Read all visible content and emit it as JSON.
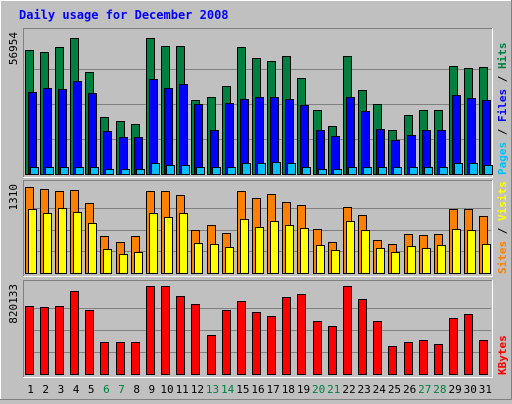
{
  "chart_data": {
    "type": "bar",
    "title": "Daily usage for December 2008",
    "categories": [
      "1",
      "2",
      "3",
      "4",
      "5",
      "6",
      "7",
      "8",
      "9",
      "10",
      "11",
      "12",
      "13",
      "14",
      "15",
      "16",
      "17",
      "18",
      "19",
      "20",
      "21",
      "22",
      "23",
      "24",
      "25",
      "26",
      "27",
      "28",
      "29",
      "30",
      "31"
    ],
    "weekend_days": [
      "6",
      "7",
      "13",
      "14",
      "20",
      "21",
      "27",
      "28"
    ],
    "colors": {
      "background": "#C0C0C0",
      "title": "#0000FF",
      "hits": "#008040",
      "files": "#0000FF",
      "pages": "#00C0FF",
      "visits": "#FFFF00",
      "sites": "#FF8000",
      "kbytes": "#FF0000",
      "weekday_label": "#000000",
      "weekend_label": "#008040",
      "gridline": "#808080"
    },
    "panels": [
      {
        "id": "hits",
        "y_label": "56954",
        "ymax": 56954,
        "legend": [
          {
            "text": "Pages",
            "color": "#00C0FF"
          },
          {
            "text": " / ",
            "color": "#000000"
          },
          {
            "text": "Files",
            "color": "#0000FF"
          },
          {
            "text": " / ",
            "color": "#000000"
          },
          {
            "text": "Hits",
            "color": "#008040"
          }
        ],
        "series": [
          {
            "name": "Hits",
            "color": "#008040",
            "values": [
              50500,
              49500,
              51500,
              55500,
              41500,
              23000,
              21500,
              20500,
              55500,
              52000,
              52000,
              30000,
              31500,
              36000,
              51500,
              47000,
              46000,
              48000,
              39000,
              26000,
              19500,
              48000,
              34000,
              28500,
              18000,
              24000,
              26000,
              26000,
              44000,
              43000,
              43500
            ]
          },
          {
            "name": "Files",
            "color": "#0000FF",
            "values": [
              33500,
              35000,
              34500,
              38000,
              33000,
              17500,
              15000,
              15000,
              38500,
              35000,
              36500,
              28500,
              18000,
              29000,
              30500,
              31500,
              31500,
              30500,
              28000,
              18000,
              15500,
              31500,
              25500,
              18500,
              14000,
              16000,
              18000,
              18000,
              32000,
              31000,
              30000
            ]
          },
          {
            "name": "Pages",
            "color": "#00C0FF",
            "values": [
              2800,
              2800,
              2800,
              2800,
              2800,
              1900,
              1900,
              1900,
              4500,
              3800,
              3800,
              2800,
              2800,
              2800,
              4500,
              4500,
              5000,
              4500,
              2800,
              1900,
              1900,
              2800,
              2800,
              2800,
              2800,
              2800,
              2800,
              2800,
              4500,
              4500,
              3800
            ]
          }
        ]
      },
      {
        "id": "visits",
        "y_label": "1310",
        "ymax": 1310,
        "legend": [
          {
            "text": "Sites",
            "color": "#FF8000"
          },
          {
            "text": " / ",
            "color": "#000000"
          },
          {
            "text": "Visits",
            "color": "#FFFF00"
          }
        ],
        "series": [
          {
            "name": "Sites",
            "color": "#FF8000",
            "values": [
              1290,
              1270,
              1230,
              1250,
              1050,
              560,
              470,
              550,
              1240,
              1240,
              1170,
              640,
              730,
              600,
              1240,
              1130,
              1190,
              1070,
              1020,
              660,
              470,
              990,
              880,
              500,
              430,
              580,
              570,
              590,
              970,
              960,
              860
            ]
          },
          {
            "name": "Visits",
            "color": "#FFFF00",
            "values": [
              960,
              910,
              980,
              920,
              750,
              360,
              290,
              320,
              910,
              840,
              900,
              450,
              440,
              390,
              820,
              700,
              780,
              720,
              680,
              420,
              350,
              780,
              650,
              370,
              310,
              410,
              380,
              420,
              660,
              650,
              430
            ]
          }
        ]
      },
      {
        "id": "kbytes",
        "y_label": "820133",
        "ymax": 820133,
        "legend": [
          {
            "text": "KBytes",
            "color": "#FF0000"
          }
        ],
        "series": [
          {
            "name": "KBytes",
            "color": "#FF0000",
            "values": [
              630000,
              620000,
              630000,
              770000,
              600000,
              300000,
              300000,
              300000,
              820000,
              820000,
              730000,
              650000,
              360000,
              600000,
              680000,
              580000,
              540000,
              720000,
              750000,
              490000,
              450000,
              820000,
              700000,
              490000,
              260000,
              300000,
              320000,
              280000,
              520000,
              560000,
              320000
            ]
          }
        ]
      }
    ]
  }
}
